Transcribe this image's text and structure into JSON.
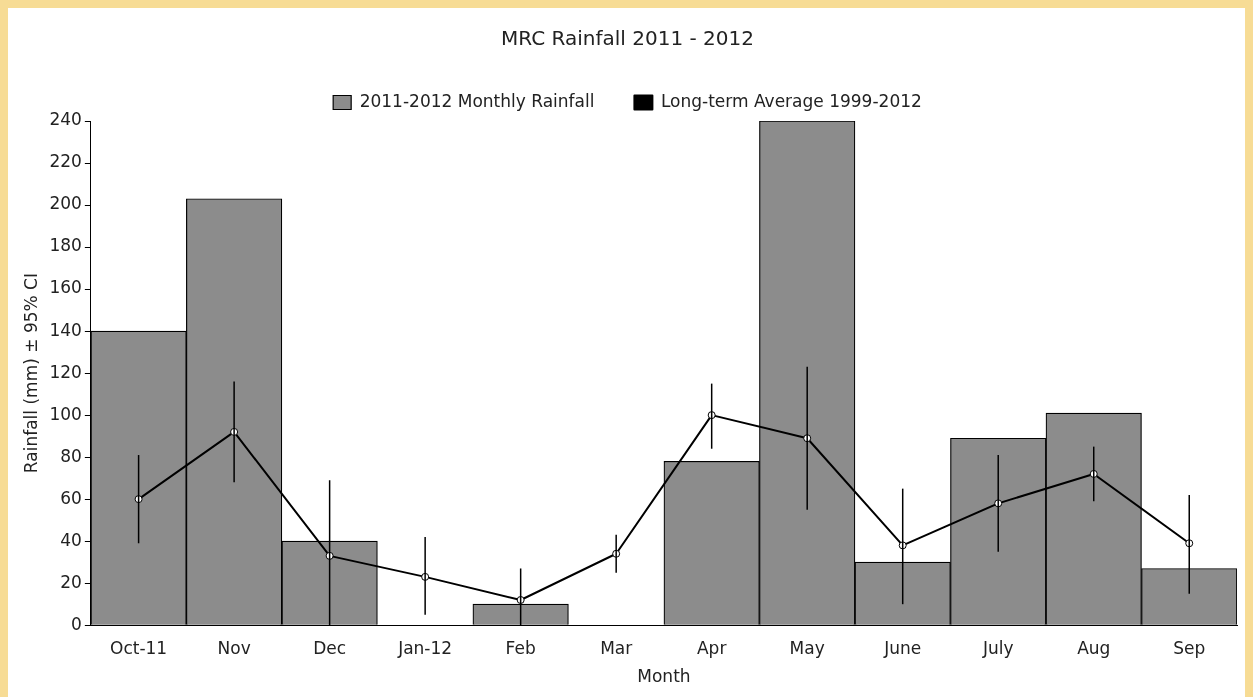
{
  "chart_data": {
    "type": "bar",
    "title": "MRC Rainfall 2011 - 2012",
    "xlabel": "Month",
    "ylabel": "Rainfall (mm) ± 95% CI",
    "categories": [
      "Oct-11",
      "Nov",
      "Dec",
      "Jan-12",
      "Feb",
      "Mar",
      "Apr",
      "May",
      "June",
      "July",
      "Aug",
      "Sep"
    ],
    "series": [
      {
        "name": "2011-2012 Monthly Rainfall",
        "color": "#8c8c8c",
        "values": [
          140,
          203,
          40,
          0,
          10,
          0,
          78,
          240,
          30,
          89,
          101,
          27
        ]
      },
      {
        "name": "Long-term Average 1999-2012",
        "type": "line",
        "color": "#000000",
        "marker": "circle",
        "values": [
          60,
          92,
          33,
          23,
          12,
          34,
          100,
          89,
          38,
          58,
          72,
          39
        ],
        "errors": [
          [
            39,
            81
          ],
          [
            68,
            116
          ],
          [
            0,
            69
          ],
          [
            5,
            42
          ],
          [
            0,
            27
          ],
          [
            25,
            43
          ],
          [
            84,
            115
          ],
          [
            55,
            123
          ],
          [
            10,
            65
          ],
          [
            35,
            81
          ],
          [
            59,
            85
          ],
          [
            15,
            62
          ]
        ]
      }
    ],
    "ylim": [
      0,
      240
    ],
    "yticks": [
      0,
      20,
      40,
      60,
      80,
      100,
      120,
      140,
      160,
      180,
      200,
      220,
      240
    ],
    "grid": false,
    "legend": "top"
  }
}
